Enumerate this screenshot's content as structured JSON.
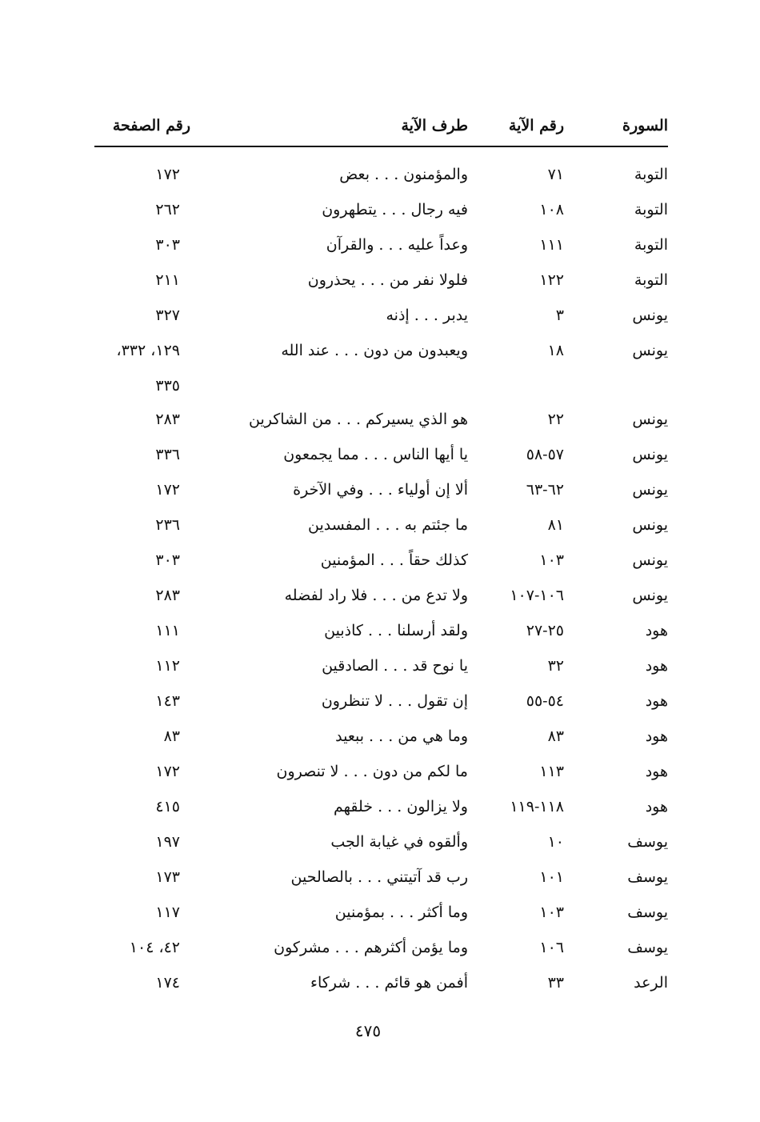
{
  "headers": {
    "surah": "السورة",
    "verse_no": "رقم الآية",
    "verse_part": "طرف الآية",
    "page_no": "رقم الصفحة"
  },
  "rows": [
    {
      "surah": "التوبة",
      "verse": "٧١",
      "text": "والمؤمنون . . . بعض",
      "page": "١٧٢"
    },
    {
      "surah": "التوبة",
      "verse": "١٠٨",
      "text": "فيه رجال . . . يتطهرون",
      "page": "٢٦٢"
    },
    {
      "surah": "التوبة",
      "verse": "١١١",
      "text": "وعداً عليه . . . والقرآن",
      "page": "٣٠٣"
    },
    {
      "surah": "التوبة",
      "verse": "١٢٢",
      "text": "فلولا نفر من . . . يحذرون",
      "page": "٢١١"
    },
    {
      "surah": "يونس",
      "verse": "٣",
      "text": "يدبر . . . إذنه",
      "page": "٣٢٧"
    },
    {
      "surah": "يونس",
      "verse": "١٨",
      "text": "ويعبدون من دون . . . عند الله",
      "page": "١٢٩، ٣٣٢، ٣٣٥"
    },
    {
      "surah": "يونس",
      "verse": "٢٢",
      "text": "هو الذي يسيركم . . . من الشاكرين",
      "page": "٢٨٣"
    },
    {
      "surah": "يونس",
      "verse": "٥٧-٥٨",
      "text": "يا أيها الناس . . . مما يجمعون",
      "page": "٣٣٦"
    },
    {
      "surah": "يونس",
      "verse": "٦٢-٦٣",
      "text": "ألا إن أولياء . . . وفي الآخرة",
      "page": "١٧٢"
    },
    {
      "surah": "يونس",
      "verse": "٨١",
      "text": "ما جئتم به . . . المفسدين",
      "page": "٢٣٦"
    },
    {
      "surah": "يونس",
      "verse": "١٠٣",
      "text": "كذلك حقاً . . . المؤمنين",
      "page": "٣٠٣"
    },
    {
      "surah": "يونس",
      "verse": "١٠٦-١٠٧",
      "text": "ولا تدع من . . . فلا راد لفضله",
      "page": "٢٨٣"
    },
    {
      "surah": "هود",
      "verse": "٢٥-٢٧",
      "text": "ولقد أرسلنا . . . كاذبين",
      "page": "١١١"
    },
    {
      "surah": "هود",
      "verse": "٣٢",
      "text": "يا نوح قد . . . الصادقين",
      "page": "١١٢"
    },
    {
      "surah": "هود",
      "verse": "٥٤-٥٥",
      "text": "إن تقول . . . لا تنظرون",
      "page": "١٤٣"
    },
    {
      "surah": "هود",
      "verse": "٨٣",
      "text": "وما هي من . . . ببعيد",
      "page": "٨٣"
    },
    {
      "surah": "هود",
      "verse": "١١٣",
      "text": "ما لكم من دون . . . لا تنصرون",
      "page": "١٧٢"
    },
    {
      "surah": "هود",
      "verse": "١١٨-١١٩",
      "text": "ولا يزالون . . . خلقهم",
      "page": "٤١٥"
    },
    {
      "surah": "يوسف",
      "verse": "١٠",
      "text": "وألقوه في غيابة الجب",
      "page": "١٩٧"
    },
    {
      "surah": "يوسف",
      "verse": "١٠١",
      "text": "رب قد آتيتني . . . بالصالحين",
      "page": "١٧٣"
    },
    {
      "surah": "يوسف",
      "verse": "١٠٣",
      "text": "وما أكثر . . . بمؤمنين",
      "page": "١١٧"
    },
    {
      "surah": "يوسف",
      "verse": "١٠٦",
      "text": "وما يؤمن أكثرهم . . . مشركون",
      "page": "٤٢، ١٠٤"
    },
    {
      "surah": "الرعد",
      "verse": "٣٣",
      "text": "أفمن هو قائم . . . شركاء",
      "page": "١٧٤"
    }
  ],
  "page_number": "٤٧٥"
}
